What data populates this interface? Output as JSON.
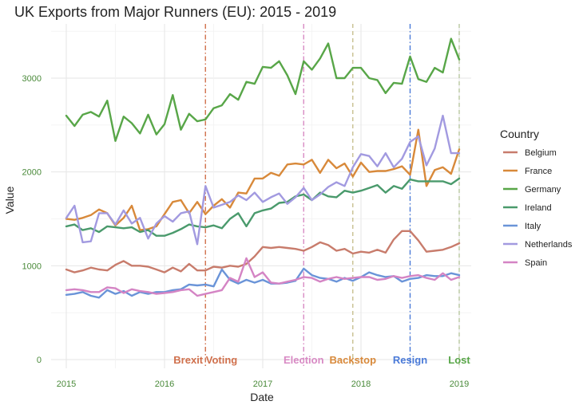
{
  "chart_data": {
    "type": "line",
    "title": "UK Exports from Major Runners (EU): 2015 - 2019",
    "xlabel": "Date",
    "ylabel": "Value",
    "xlim": [
      "2015-01",
      "2019-01"
    ],
    "ylim": [
      0,
      3500
    ],
    "x_ticks": [
      "2015",
      "2016",
      "2017",
      "2018",
      "2019"
    ],
    "y_ticks": [
      0,
      1000,
      2000,
      3000
    ],
    "grid": true,
    "legend_position": "right",
    "legend_title": "Country",
    "tick_color": "#4a8a3a",
    "x": [
      "2015-01",
      "2015-02",
      "2015-03",
      "2015-04",
      "2015-05",
      "2015-06",
      "2015-07",
      "2015-08",
      "2015-09",
      "2015-10",
      "2015-11",
      "2015-12",
      "2016-01",
      "2016-02",
      "2016-03",
      "2016-04",
      "2016-05",
      "2016-06",
      "2016-07",
      "2016-08",
      "2016-09",
      "2016-10",
      "2016-11",
      "2016-12",
      "2017-01",
      "2017-02",
      "2017-03",
      "2017-04",
      "2017-05",
      "2017-06",
      "2017-07",
      "2017-08",
      "2017-09",
      "2017-10",
      "2017-11",
      "2017-12",
      "2018-01",
      "2018-02",
      "2018-03",
      "2018-04",
      "2018-05",
      "2018-06",
      "2018-07",
      "2018-08",
      "2018-09",
      "2018-10",
      "2018-11",
      "2018-12",
      "2019-01"
    ],
    "series": [
      {
        "name": "Belgium",
        "color": "#c87c6c",
        "values": [
          960,
          930,
          950,
          980,
          960,
          950,
          1010,
          1050,
          1000,
          1000,
          990,
          960,
          930,
          980,
          940,
          1020,
          950,
          950,
          990,
          980,
          1000,
          990,
          1020,
          1100,
          1200,
          1190,
          1200,
          1190,
          1180,
          1160,
          1200,
          1250,
          1220,
          1160,
          1180,
          1130,
          1150,
          1140,
          1170,
          1140,
          1280,
          1370,
          1370,
          1270,
          1150,
          1160,
          1170,
          1200,
          1240
        ]
      },
      {
        "name": "France",
        "color": "#d8893a",
        "values": [
          1500,
          1490,
          1510,
          1540,
          1600,
          1560,
          1430,
          1510,
          1640,
          1380,
          1390,
          1420,
          1550,
          1680,
          1700,
          1560,
          1680,
          1550,
          1640,
          1710,
          1620,
          1780,
          1770,
          1930,
          1930,
          1990,
          1960,
          2080,
          2090,
          2080,
          2130,
          1990,
          2130,
          2040,
          2090,
          1950,
          2100,
          2000,
          2010,
          2010,
          2030,
          2060,
          1970,
          2450,
          1850,
          2020,
          2050,
          1980,
          2240
        ]
      },
      {
        "name": "Germany",
        "color": "#58a648",
        "values": [
          2600,
          2490,
          2610,
          2640,
          2590,
          2760,
          2330,
          2590,
          2520,
          2410,
          2610,
          2400,
          2510,
          2820,
          2450,
          2620,
          2540,
          2560,
          2680,
          2710,
          2830,
          2770,
          2960,
          2940,
          3120,
          3110,
          3180,
          3030,
          2830,
          3180,
          3090,
          3210,
          3370,
          3000,
          3000,
          3110,
          3110,
          3000,
          2980,
          2840,
          2950,
          2940,
          3230,
          2990,
          2960,
          3110,
          3060,
          3420,
          3200
        ]
      },
      {
        "name": "Ireland",
        "color": "#4a9a6c",
        "values": [
          1420,
          1440,
          1380,
          1400,
          1360,
          1420,
          1410,
          1400,
          1410,
          1360,
          1380,
          1320,
          1320,
          1350,
          1390,
          1440,
          1420,
          1410,
          1430,
          1400,
          1500,
          1560,
          1420,
          1560,
          1590,
          1610,
          1670,
          1680,
          1740,
          1760,
          1700,
          1780,
          1740,
          1730,
          1800,
          1780,
          1800,
          1830,
          1860,
          1780,
          1850,
          1820,
          1920,
          1900,
          1900,
          1900,
          1900,
          1870,
          1930
        ]
      },
      {
        "name": "Italy",
        "color": "#6a94d8",
        "values": [
          690,
          700,
          720,
          680,
          660,
          740,
          700,
          730,
          680,
          720,
          700,
          720,
          720,
          740,
          750,
          800,
          790,
          800,
          780,
          960,
          850,
          810,
          850,
          820,
          850,
          810,
          810,
          820,
          840,
          970,
          900,
          870,
          860,
          830,
          870,
          840,
          880,
          930,
          900,
          880,
          890,
          830,
          860,
          870,
          900,
          890,
          890,
          920,
          900
        ]
      },
      {
        "name": "Netherlands",
        "color": "#a29ae0",
        "values": [
          1510,
          1640,
          1250,
          1260,
          1560,
          1560,
          1440,
          1590,
          1450,
          1510,
          1290,
          1450,
          1530,
          1470,
          1560,
          1580,
          1230,
          1850,
          1620,
          1650,
          1680,
          1750,
          1700,
          1780,
          1680,
          1730,
          1770,
          1660,
          1730,
          1830,
          1700,
          1760,
          1840,
          1890,
          1850,
          2050,
          2190,
          2170,
          2060,
          2200,
          2050,
          2140,
          2320,
          2380,
          2070,
          2250,
          2600,
          2200,
          2200
        ]
      },
      {
        "name": "Spain",
        "color": "#d484c4",
        "values": [
          740,
          750,
          740,
          720,
          720,
          770,
          760,
          710,
          750,
          730,
          720,
          700,
          710,
          720,
          740,
          750,
          680,
          700,
          720,
          740,
          870,
          830,
          1080,
          880,
          930,
          820,
          810,
          830,
          850,
          880,
          870,
          830,
          860,
          880,
          860,
          870,
          880,
          880,
          850,
          860,
          890,
          870,
          890,
          900,
          870,
          850,
          920,
          850,
          880
        ]
      }
    ],
    "events": [
      {
        "label": "Brexit Voting",
        "date": "2016-06",
        "color": "#d0704c",
        "style": "dashdot"
      },
      {
        "label": "Election",
        "date": "2017-06",
        "color": "#d88ac4",
        "style": "dashdot"
      },
      {
        "label": "Backstop",
        "date": "2017-12",
        "color": "#c8c090",
        "style": "dashed",
        "label_color": "#d8893a"
      },
      {
        "label": "Resign",
        "date": "2018-07",
        "color": "#4a7ad8",
        "style": "dashdot"
      },
      {
        "label": "Lost",
        "date": "2019-01",
        "color": "#b8c8a0",
        "style": "dashed",
        "label_color": "#58a648"
      }
    ]
  }
}
